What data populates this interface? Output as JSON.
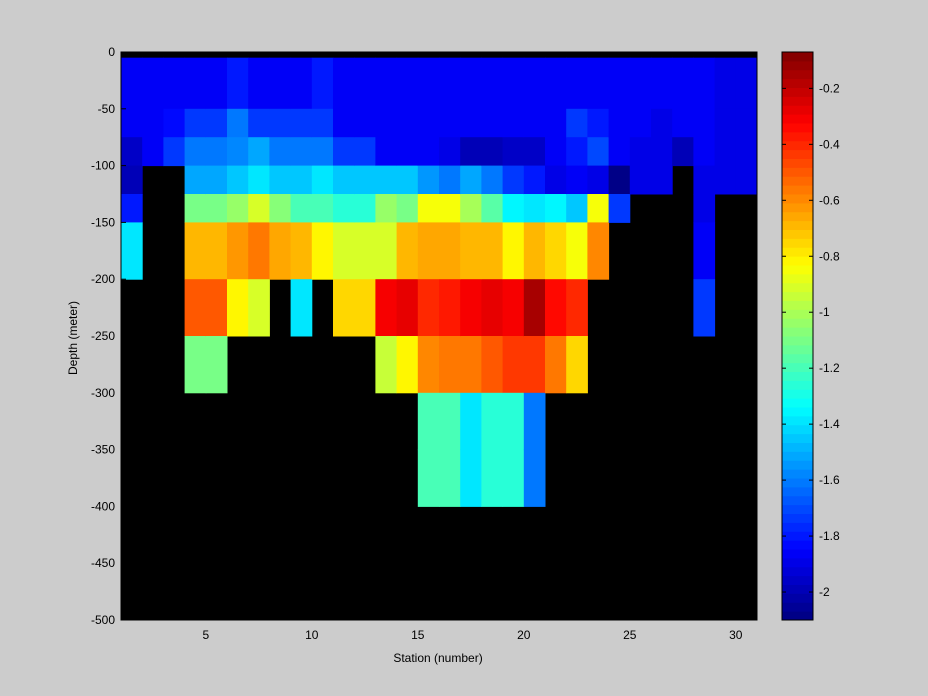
{
  "chart_data": {
    "type": "heatmap",
    "title": "",
    "xlabel": "Station (number)",
    "ylabel": "Depth (meter)",
    "xlim": [
      1,
      31
    ],
    "ylim": [
      -500,
      0
    ],
    "x_ticks": [
      5,
      10,
      15,
      20,
      25,
      30
    ],
    "y_ticks": [
      0,
      -50,
      -100,
      -150,
      -200,
      -250,
      -300,
      -350,
      -400,
      -450,
      -500
    ],
    "colorbar": {
      "range": [
        -2.1,
        -0.07
      ],
      "colormap": "jet",
      "ticks": [
        -0.2,
        -0.4,
        -0.6,
        -0.8,
        -1,
        -1.2,
        -1.4,
        -1.6,
        -1.8,
        -2
      ],
      "tick_labels": [
        "-0.2",
        "-0.4",
        "-0.6",
        "-0.8",
        "-1",
        "-1.2",
        "-1.4",
        "-1.6",
        "-1.8",
        "-2"
      ]
    },
    "background_color": "#000000",
    "depth_bins_top": [
      -5,
      -50,
      -75,
      -100,
      -125,
      -150,
      -200,
      -250,
      -300,
      -350,
      -400
    ],
    "depth_bins_bottom": [
      -50,
      -75,
      -100,
      -125,
      -150,
      -200,
      -250,
      -300,
      -350,
      -400,
      -500
    ],
    "station_values": {
      "1": [
        -1.85,
        -1.85,
        -1.95,
        -2.0,
        -1.8,
        -1.4,
        null,
        null,
        null,
        null,
        null
      ],
      "2": [
        -1.85,
        -1.85,
        -1.85,
        null,
        null,
        null,
        null,
        null,
        null,
        null,
        null
      ],
      "3": [
        -1.85,
        -1.82,
        -1.75,
        null,
        null,
        null,
        null,
        null,
        null,
        null,
        null
      ],
      "4": [
        -1.85,
        -1.72,
        -1.6,
        -1.5,
        -1.1,
        -0.7,
        -0.5,
        -1.1,
        null,
        null,
        null
      ],
      "5": [
        -1.85,
        -1.72,
        -1.6,
        -1.5,
        -1.1,
        -0.7,
        -0.5,
        -1.1,
        null,
        null,
        null
      ],
      "6": [
        -1.8,
        -1.62,
        -1.58,
        -1.45,
        -1.05,
        -0.63,
        -0.8,
        null,
        null,
        null,
        null
      ],
      "7": [
        -1.85,
        -1.75,
        -1.5,
        -1.38,
        -0.9,
        -0.55,
        -0.9,
        null,
        null,
        null,
        null
      ],
      "8": [
        -1.85,
        -1.75,
        -1.6,
        -1.45,
        -1.08,
        -0.67,
        null,
        null,
        null,
        null,
        null
      ],
      "9": [
        -1.85,
        -1.75,
        -1.6,
        -1.45,
        -1.2,
        -0.7,
        -1.4,
        null,
        null,
        null,
        null
      ],
      "10": [
        -1.8,
        -1.75,
        -1.6,
        -1.4,
        -1.2,
        -0.8,
        null,
        null,
        null,
        null,
        null
      ],
      "11": [
        -1.85,
        -1.85,
        -1.75,
        -1.45,
        -1.25,
        -0.9,
        -0.75,
        null,
        null,
        null,
        null
      ],
      "12": [
        -1.85,
        -1.85,
        -1.75,
        -1.45,
        -1.25,
        -0.9,
        -0.75,
        null,
        null,
        null,
        null
      ],
      "13": [
        -1.85,
        -1.85,
        -1.85,
        -1.45,
        -1.05,
        -0.9,
        -0.3,
        -0.95,
        null,
        null,
        null
      ],
      "14": [
        -1.85,
        -1.85,
        -1.85,
        -1.45,
        -1.1,
        -0.7,
        -0.28,
        -0.8,
        null,
        null,
        null
      ],
      "15": [
        -1.85,
        -1.85,
        -1.85,
        -1.55,
        -0.85,
        -0.65,
        -0.4,
        -0.6,
        -1.2,
        -1.2,
        null
      ],
      "16": [
        -1.85,
        -1.85,
        -1.9,
        -1.6,
        -0.85,
        -0.65,
        -0.38,
        -0.55,
        -1.2,
        -1.2,
        null
      ],
      "17": [
        -1.85,
        -1.85,
        -2.0,
        -1.5,
        -1.0,
        -0.68,
        -0.3,
        -0.55,
        -1.4,
        -1.4,
        null
      ],
      "18": [
        -1.85,
        -1.85,
        -2.0,
        -1.6,
        -1.15,
        -0.7,
        -0.28,
        -0.5,
        -1.25,
        -1.25,
        null
      ],
      "19": [
        -1.85,
        -1.85,
        -1.95,
        -1.75,
        -1.35,
        -0.8,
        -0.3,
        -0.45,
        -1.25,
        -1.25,
        null
      ],
      "20": [
        -1.85,
        -1.85,
        -1.95,
        -1.8,
        -1.4,
        -0.7,
        -0.15,
        -0.42,
        -1.6,
        -1.6,
        null
      ],
      "21": [
        -1.85,
        -1.85,
        -1.85,
        -1.9,
        -1.35,
        -0.75,
        -0.35,
        -0.55,
        null,
        null,
        null
      ],
      "22": [
        -1.85,
        -1.75,
        -1.8,
        -1.85,
        -1.45,
        -0.85,
        -0.4,
        -0.75,
        null,
        null,
        null
      ],
      "23": [
        -1.85,
        -1.8,
        -1.7,
        -1.9,
        -0.85,
        -0.6,
        null,
        null,
        null,
        null,
        null
      ],
      "24": [
        -1.85,
        -1.85,
        -1.85,
        -2.1,
        -1.75,
        null,
        null,
        null,
        null,
        null,
        null
      ],
      "25": [
        -1.85,
        -1.85,
        -1.9,
        -1.9,
        null,
        null,
        null,
        null,
        null,
        null,
        null
      ],
      "26": [
        -1.85,
        -1.9,
        -1.9,
        -1.9,
        null,
        null,
        null,
        null,
        null,
        null,
        null
      ],
      "27": [
        -1.85,
        -1.85,
        -1.98,
        null,
        null,
        null,
        null,
        null,
        null,
        null,
        null
      ],
      "28": [
        -1.85,
        -1.85,
        -1.85,
        -1.9,
        -1.9,
        -1.85,
        -1.75,
        null,
        null,
        null,
        null
      ],
      "29": [
        -1.9,
        -1.9,
        -1.9,
        -1.9,
        null,
        null,
        null,
        null,
        null,
        null,
        null
      ],
      "30": [
        -1.9,
        -1.9,
        -1.9,
        -1.9,
        null,
        null,
        null,
        null,
        null,
        null,
        null
      ]
    }
  }
}
